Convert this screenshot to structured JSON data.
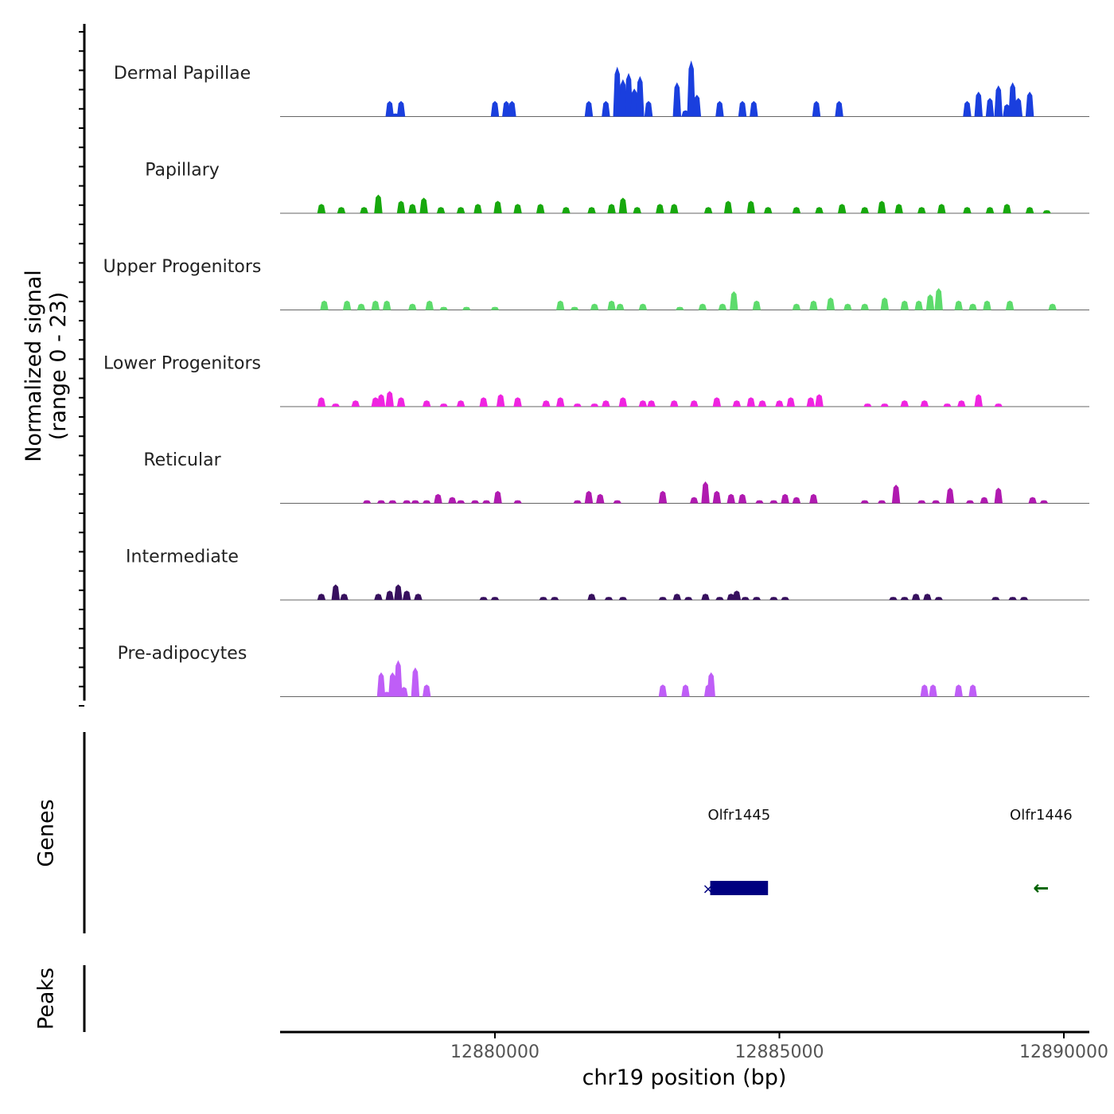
{
  "chart_data": {
    "type": "area",
    "title": "",
    "ylabel_line1": "Normalized signal",
    "ylabel_line2": "(range 0 - 23)",
    "yrange": [
      0,
      23
    ],
    "xlabel": "chr19 position (bp)",
    "xlim": [
      12876200,
      12890500
    ],
    "xticks": [
      12880000,
      12885000,
      12890000
    ],
    "xtick_labels": [
      "12880000",
      "12885000",
      "12890000"
    ],
    "series": [
      {
        "name": "Dermal Papillae",
        "color": "#1a3fde",
        "x": [
          12878150,
          12878250,
          12878350,
          12880000,
          12880100,
          12880200,
          12880300,
          12881650,
          12881800,
          12881950,
          12882150,
          12882250,
          12882350,
          12882450,
          12882550,
          12882700,
          12883200,
          12883350,
          12883450,
          12883550,
          12883950,
          12884350,
          12884550,
          12885650,
          12886050,
          12888300,
          12888500,
          12888700,
          12888850,
          12889000,
          12889100,
          12889200,
          12889400
        ],
        "values": [
          5,
          1,
          5,
          5,
          0,
          5,
          5,
          5,
          0,
          5,
          16,
          12,
          14,
          9,
          13,
          5,
          11,
          2,
          18,
          7,
          5,
          5,
          5,
          5,
          5,
          5,
          8,
          6,
          10,
          4,
          11,
          6,
          8
        ]
      },
      {
        "name": "Papillary",
        "color": "#17a80d",
        "x": [
          12876950,
          12877300,
          12877700,
          12877950,
          12878350,
          12878550,
          12878750,
          12879050,
          12879400,
          12879700,
          12880050,
          12880400,
          12880800,
          12881250,
          12881700,
          12882050,
          12882250,
          12882500,
          12882900,
          12883150,
          12883750,
          12884100,
          12884500,
          12884800,
          12885300,
          12885700,
          12886100,
          12886500,
          12886800,
          12887100,
          12887500,
          12887850,
          12888300,
          12888700,
          12889000,
          12889400,
          12889700
        ],
        "values": [
          3,
          2,
          2,
          6,
          4,
          3,
          5,
          2,
          2,
          3,
          4,
          3,
          3,
          2,
          2,
          3,
          5,
          2,
          3,
          3,
          2,
          4,
          4,
          2,
          2,
          2,
          3,
          2,
          4,
          3,
          2,
          3,
          2,
          2,
          3,
          2,
          1
        ]
      },
      {
        "name": "Upper Progenitors",
        "color": "#5ddb6c",
        "x": [
          12877000,
          12877400,
          12877650,
          12877900,
          12878100,
          12878550,
          12878850,
          12879100,
          12879500,
          12880000,
          12881150,
          12881400,
          12881750,
          12882050,
          12882200,
          12882600,
          12883250,
          12883650,
          12884000,
          12884200,
          12884600,
          12885300,
          12885600,
          12885900,
          12886200,
          12886500,
          12886850,
          12887200,
          12887450,
          12887650,
          12887800,
          12888150,
          12888400,
          12888650,
          12889050,
          12889800
        ],
        "values": [
          3,
          3,
          2,
          3,
          3,
          2,
          3,
          1,
          1,
          1,
          3,
          1,
          2,
          3,
          2,
          2,
          1,
          2,
          2,
          6,
          3,
          2,
          3,
          4,
          2,
          2,
          4,
          3,
          3,
          5,
          7,
          3,
          2,
          3,
          3,
          2
        ]
      },
      {
        "name": "Lower Progenitors",
        "color": "#ef24e0",
        "x": [
          12876950,
          12877200,
          12877550,
          12877900,
          12878000,
          12878150,
          12878350,
          12878800,
          12879100,
          12879400,
          12879800,
          12880100,
          12880400,
          12880900,
          12881150,
          12881450,
          12881750,
          12881950,
          12882250,
          12882600,
          12882750,
          12883150,
          12883500,
          12883900,
          12884250,
          12884500,
          12884700,
          12885000,
          12885200,
          12885550,
          12885700,
          12886550,
          12886850,
          12887200,
          12887550,
          12887950,
          12888200,
          12888500,
          12888850
        ],
        "values": [
          3,
          1,
          2,
          3,
          4,
          5,
          3,
          2,
          1,
          2,
          3,
          4,
          3,
          2,
          3,
          1,
          1,
          2,
          3,
          2,
          2,
          2,
          2,
          3,
          2,
          3,
          2,
          2,
          3,
          3,
          4,
          1,
          1,
          2,
          2,
          1,
          2,
          4,
          1
        ]
      },
      {
        "name": "Reticular",
        "color": "#b01ab0",
        "x": [
          12877750,
          12878000,
          12878200,
          12878450,
          12878600,
          12878800,
          12879000,
          12879250,
          12879400,
          12879650,
          12879850,
          12880050,
          12880400,
          12881450,
          12881650,
          12881850,
          12882150,
          12882950,
          12883500,
          12883700,
          12883900,
          12884150,
          12884350,
          12884650,
          12884900,
          12885100,
          12885300,
          12885600,
          12886500,
          12886800,
          12887050,
          12887500,
          12887750,
          12888000,
          12888350,
          12888600,
          12888850,
          12889450,
          12889650
        ],
        "values": [
          1,
          1,
          1,
          1,
          1,
          1,
          3,
          2,
          1,
          1,
          1,
          4,
          1,
          1,
          4,
          3,
          1,
          4,
          2,
          7,
          4,
          3,
          3,
          1,
          1,
          3,
          2,
          3,
          1,
          1,
          6,
          1,
          1,
          5,
          1,
          2,
          5,
          2,
          1
        ]
      },
      {
        "name": "Intermediate",
        "color": "#37105e",
        "x": [
          12876950,
          12877200,
          12877350,
          12877950,
          12878150,
          12878300,
          12878450,
          12878650,
          12879800,
          12880000,
          12880850,
          12881050,
          12881700,
          12882000,
          12882250,
          12882950,
          12883200,
          12883400,
          12883700,
          12883950,
          12884150,
          12884250,
          12884400,
          12884600,
          12884900,
          12885100,
          12887000,
          12887200,
          12887400,
          12887600,
          12887800,
          12888800,
          12889100,
          12889300
        ],
        "values": [
          2,
          5,
          2,
          2,
          3,
          5,
          3,
          2,
          1,
          1,
          1,
          1,
          2,
          1,
          1,
          1,
          2,
          1,
          2,
          1,
          2,
          3,
          1,
          1,
          1,
          1,
          1,
          1,
          2,
          2,
          1,
          1,
          1,
          1
        ]
      },
      {
        "name": "Pre-adipocytes",
        "color": "#bf5ef7",
        "x": [
          12878000,
          12878100,
          12878200,
          12878300,
          12878400,
          12878600,
          12878800,
          12882950,
          12883350,
          12883750,
          12883800,
          12887550,
          12887700,
          12888150,
          12888400
        ],
        "values": [
          10,
          2,
          10,
          15,
          4,
          12,
          5,
          5,
          5,
          5,
          10,
          5,
          5,
          5,
          5
        ]
      }
    ],
    "genes": [
      {
        "name": "Olfr1445",
        "start": 12883700,
        "end": 12884800,
        "color": "#000080",
        "strand": "+"
      },
      {
        "name": "Olfr1446",
        "start": 12889500,
        "end": 12889700,
        "color": "#006400",
        "strand": "-"
      }
    ],
    "panels": [
      "Genes",
      "Peaks"
    ]
  }
}
